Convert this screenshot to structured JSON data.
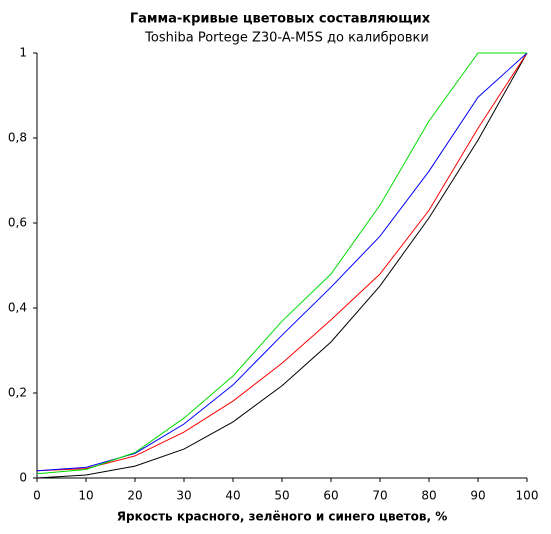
{
  "chart_data": {
    "type": "line",
    "title": "Гамма-кривые  цветовых составляющих",
    "subtitle": "Toshiba Portege Z30-A-M5S до калибровки",
    "x_label": "Яркость красного, зелёного и  синего цветов, %",
    "x": [
      0,
      10,
      20,
      30,
      40,
      50,
      60,
      70,
      80,
      90,
      100
    ],
    "series": [
      {
        "name": "black",
        "color": "#000000",
        "values": [
          0,
          0.007,
          0.028,
          0.068,
          0.132,
          0.217,
          0.32,
          0.452,
          0.612,
          0.795,
          1
        ]
      },
      {
        "name": "red",
        "color": "#ff0000",
        "values": [
          0.017,
          0.022,
          0.052,
          0.108,
          0.181,
          0.27,
          0.372,
          0.48,
          0.63,
          0.823,
          1
        ]
      },
      {
        "name": "blue",
        "color": "#0000ff",
        "values": [
          0.017,
          0.025,
          0.058,
          0.127,
          0.219,
          0.336,
          0.449,
          0.569,
          0.722,
          0.896,
          1
        ]
      },
      {
        "name": "green",
        "color": "#00dd00",
        "values": [
          0.01,
          0.02,
          0.06,
          0.141,
          0.24,
          0.369,
          0.48,
          0.642,
          0.84,
          1,
          1
        ]
      }
    ],
    "xlim": [
      0,
      100
    ],
    "xticks": [
      0,
      10,
      20,
      30,
      40,
      50,
      60,
      70,
      80,
      90,
      100
    ],
    "ylim": [
      0,
      1
    ],
    "yticks": [
      0,
      {
        "value": 0.2,
        "label": "0,2"
      },
      {
        "value": 0.4,
        "label": "0,4"
      },
      {
        "value": 0.6,
        "label": "0,6"
      },
      {
        "value": 0.8,
        "label": "0,8"
      },
      1
    ],
    "grid": false
  }
}
